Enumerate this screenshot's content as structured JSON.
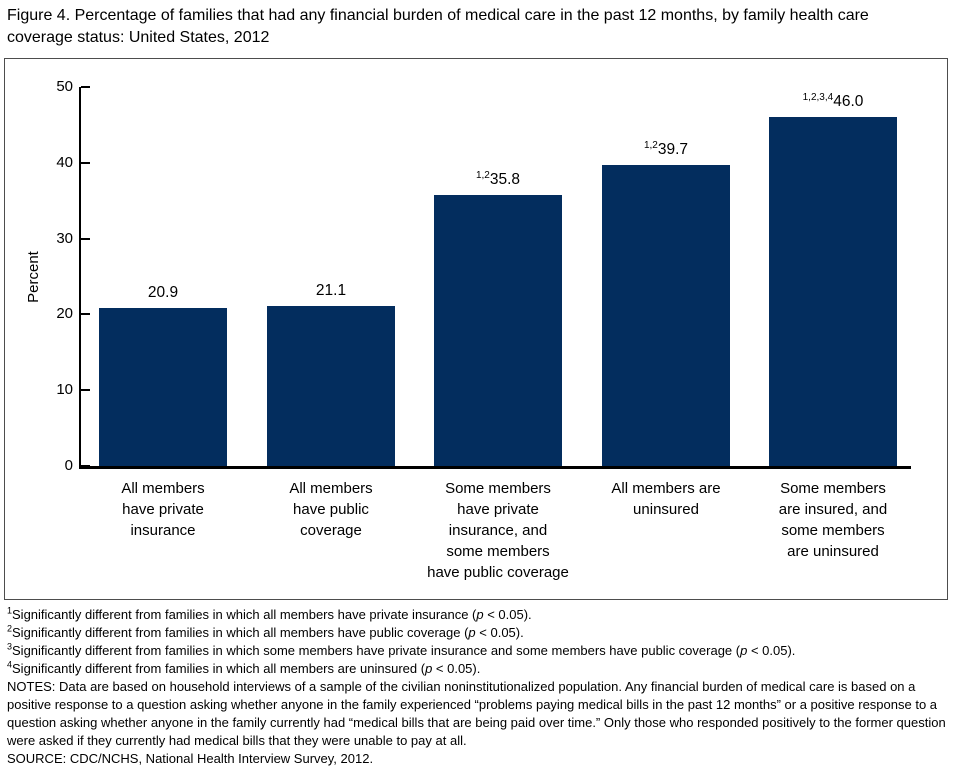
{
  "figure": {
    "title": "Figure 4. Percentage of families that had any financial burden of medical care in the past 12 months, by family health care\ncoverage status: United States, 2012"
  },
  "chart_data": {
    "type": "bar",
    "title": "Percentage of families that had any financial burden of medical care in the past 12 months, by family health care coverage status: United States, 2012",
    "xlabel": "",
    "ylabel": "Percent",
    "ylim": [
      0,
      50
    ],
    "yticks": [
      0,
      10,
      20,
      30,
      40,
      50
    ],
    "grid": "off",
    "legend": "none",
    "bar_color": "#032D5E",
    "categories": [
      "All members\nhave private\ninsurance",
      "All members\nhave public\ncoverage",
      "Some members\nhave private\ninsurance, and\nsome members\nhave public coverage",
      "All members are\nuninsured",
      "Some members\nare insured, and\nsome members\nare uninsured"
    ],
    "values": [
      20.9,
      21.1,
      35.8,
      39.7,
      46.0
    ],
    "value_labels": [
      {
        "sup": "",
        "text": "20.9"
      },
      {
        "sup": "",
        "text": "21.1"
      },
      {
        "sup": "1,2",
        "text": "35.8"
      },
      {
        "sup": "1,2",
        "text": "39.7"
      },
      {
        "sup": "1,2,3,4",
        "text": "46.0"
      }
    ]
  },
  "footnotes": [
    {
      "sup": "1",
      "text": "Significantly different from families in which all members have private insurance (p < 0.05)."
    },
    {
      "sup": "2",
      "text": "Significantly different from families in which all members have public coverage (p < 0.05)."
    },
    {
      "sup": "3",
      "text": "Significantly different from families in which some members have private insurance and some members have public coverage (p < 0.05)."
    },
    {
      "sup": "4",
      "text": "Significantly different from families in which all members are uninsured (p < 0.05)."
    }
  ],
  "notes": "NOTES: Data are based on household interviews of a sample of the civilian noninstitutionalized population. Any financial burden of medical care is based on a\npositive response to a question asking whether anyone in the family experienced “problems paying medical bills in the past 12 months” or a positive response to a\nquestion asking whether anyone in the family currently had “medical bills that are being paid over time.” Only those who responded positively to the former question\nwere asked if they currently had medical bills that they were unable to pay at all.",
  "source": "SOURCE: CDC/NCHS, National Health Interview Survey, 2012."
}
